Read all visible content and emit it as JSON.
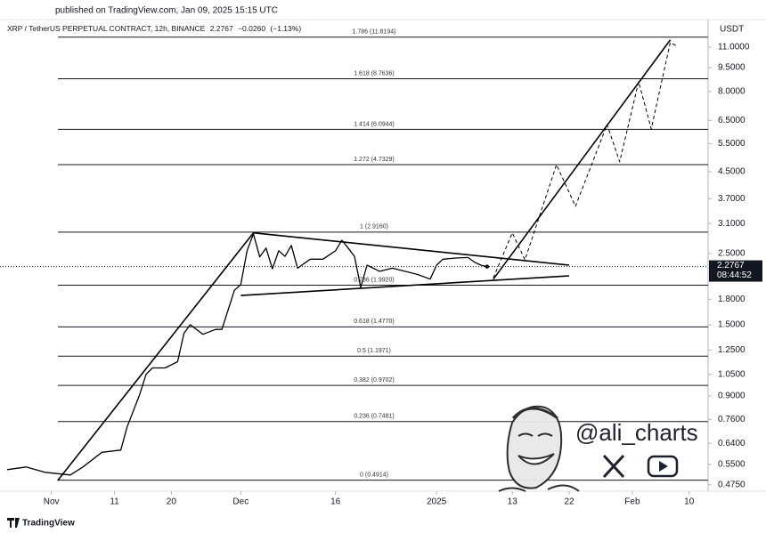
{
  "header": {
    "published": "published on TradingView.com, Jan 09, 2025 15:15 UTC"
  },
  "chart_data": {
    "type": "line",
    "title": "XRP / TetherUS PERPETUAL CONTRACT, 12h, BINANCE",
    "quote": {
      "last": 2.2767,
      "change": {
        "value": -0.026,
        "label": "−0.0260"
      },
      "change_pct": {
        "value": -1.13,
        "label": "(−1.13%)"
      },
      "countdown": "08:44:52"
    },
    "y_unit": "USDT",
    "log_scale": true,
    "ylim": [
      0.454,
      11.95
    ],
    "yticks": [
      {
        "value": 11,
        "label": "11.0000"
      },
      {
        "value": 9.5,
        "label": "9.5000"
      },
      {
        "value": 8,
        "label": "8.0000"
      },
      {
        "value": 6.5,
        "label": "6.5000"
      },
      {
        "value": 5.5,
        "label": "5.5000"
      },
      {
        "value": 4.5,
        "label": "4.5000"
      },
      {
        "value": 3.7,
        "label": "3.7000"
      },
      {
        "value": 3.1,
        "label": "3.1000"
      },
      {
        "value": 2.5,
        "label": "2.5000"
      },
      {
        "value": 1.8,
        "label": "1.8000"
      },
      {
        "value": 1.5,
        "label": "1.5000"
      },
      {
        "value": 1.25,
        "label": "1.2500"
      },
      {
        "value": 1.05,
        "label": "1.0500"
      },
      {
        "value": 0.9,
        "label": "0.9000"
      },
      {
        "value": 0.76,
        "label": "0.7600"
      },
      {
        "value": 0.64,
        "label": "0.6400"
      },
      {
        "value": 0.55,
        "label": "0.5500"
      },
      {
        "value": 0.475,
        "label": "0.4750"
      }
    ],
    "xlim": [
      "2024-10-25",
      "2025-02-13"
    ],
    "xticks": [
      {
        "value": "2024-11-01",
        "label": "Nov"
      },
      {
        "value": "2024-11-11",
        "label": "11"
      },
      {
        "value": "2024-11-20",
        "label": "20"
      },
      {
        "value": "2024-12-01",
        "label": "Dec"
      },
      {
        "value": "2024-12-16",
        "label": "16"
      },
      {
        "value": "2025-01-01",
        "label": "2025"
      },
      {
        "value": "2025-01-13",
        "label": "13"
      },
      {
        "value": "2025-01-22",
        "label": "22"
      },
      {
        "value": "2025-02-01",
        "label": "Feb"
      },
      {
        "value": "2025-02-10",
        "label": "10"
      }
    ],
    "fib_levels": [
      {
        "value": 11.8194,
        "label": "1.786 (11.8194)"
      },
      {
        "value": 8.7636,
        "label": "1.618 (8.7636)"
      },
      {
        "value": 6.0944,
        "label": "1.414 (6.0944)"
      },
      {
        "value": 4.7329,
        "label": "1.272 (4.7329)"
      },
      {
        "value": 2.916,
        "label": "1 (2.9160)"
      },
      {
        "value": 1.992,
        "label": "0.786 (1.9920)"
      },
      {
        "value": 1.477,
        "label": "0.618 (1.4770)"
      },
      {
        "value": 1.1971,
        "label": "0.5 (1.1971)"
      },
      {
        "value": 0.9702,
        "label": "0.382 (0.9702)"
      },
      {
        "value": 0.7481,
        "label": "0.236 (0.7481)"
      },
      {
        "value": 0.4914,
        "label": "0 (0.4914)"
      }
    ],
    "series": [
      {
        "color": "#000000",
        "dash": false,
        "x": [
          "2024-10-25",
          "2024-10-28",
          "2024-10-31",
          "2024-11-04",
          "2024-11-06",
          "2024-11-09",
          "2024-11-12",
          "2024-11-13",
          "2024-11-15",
          "2024-11-16",
          "2024-11-17",
          "2024-11-19",
          "2024-11-21",
          "2024-11-22",
          "2024-11-23",
          "2024-11-25",
          "2024-11-27",
          "2024-11-28",
          "2024-11-30",
          "2024-12-01",
          "2024-12-02",
          "2024-12-03",
          "2024-12-04",
          "2024-12-05",
          "2024-12-06",
          "2024-12-07",
          "2024-12-08",
          "2024-12-09",
          "2024-12-10",
          "2024-12-12",
          "2024-12-14",
          "2024-12-16",
          "2024-12-17",
          "2024-12-18",
          "2024-12-19",
          "2024-12-20",
          "2024-12-21",
          "2024-12-23",
          "2024-12-25",
          "2024-12-27",
          "2024-12-29",
          "2024-12-31",
          "2025-01-01",
          "2025-01-02",
          "2025-01-04",
          "2025-01-06",
          "2025-01-07",
          "2025-01-08",
          "2025-01-09"
        ],
        "values": [
          0.53,
          0.54,
          0.52,
          0.51,
          0.54,
          0.6,
          0.61,
          0.72,
          0.91,
          1.05,
          1.1,
          1.1,
          1.15,
          1.41,
          1.5,
          1.4,
          1.45,
          1.45,
          1.92,
          2.0,
          2.55,
          2.88,
          2.44,
          2.6,
          2.24,
          2.55,
          2.45,
          2.65,
          2.25,
          2.4,
          2.4,
          2.55,
          2.75,
          2.6,
          2.45,
          1.96,
          2.3,
          2.2,
          2.25,
          2.2,
          2.15,
          2.08,
          2.3,
          2.4,
          2.42,
          2.43,
          2.35,
          2.3,
          2.2767
        ]
      },
      {
        "color": "#000000",
        "dash": true,
        "x": [
          "2025-01-10",
          "2025-01-13",
          "2025-01-15",
          "2025-01-20",
          "2025-01-23",
          "2025-01-28",
          "2025-01-30",
          "2025-02-02",
          "2025-02-04",
          "2025-02-07",
          "2025-02-08"
        ],
        "values": [
          2.1,
          2.9,
          2.39,
          4.73,
          3.51,
          6.31,
          4.83,
          8.58,
          6.12,
          11.36,
          11.1
        ]
      }
    ],
    "trendlines": [
      {
        "x": [
          "2024-11-02",
          "2024-12-03"
        ],
        "values": [
          0.49,
          2.9
        ]
      },
      {
        "x": [
          "2024-12-03",
          "2025-01-22"
        ],
        "values": [
          2.9,
          2.3
        ]
      },
      {
        "x": [
          "2024-12-01",
          "2025-01-22"
        ],
        "values": [
          1.85,
          2.13
        ]
      },
      {
        "x": [
          "2025-01-10",
          "2025-02-07"
        ],
        "values": [
          2.08,
          11.58
        ]
      }
    ]
  },
  "watermark": {
    "handle": "@ali_charts"
  },
  "footer": {
    "brand": "TradingView"
  }
}
